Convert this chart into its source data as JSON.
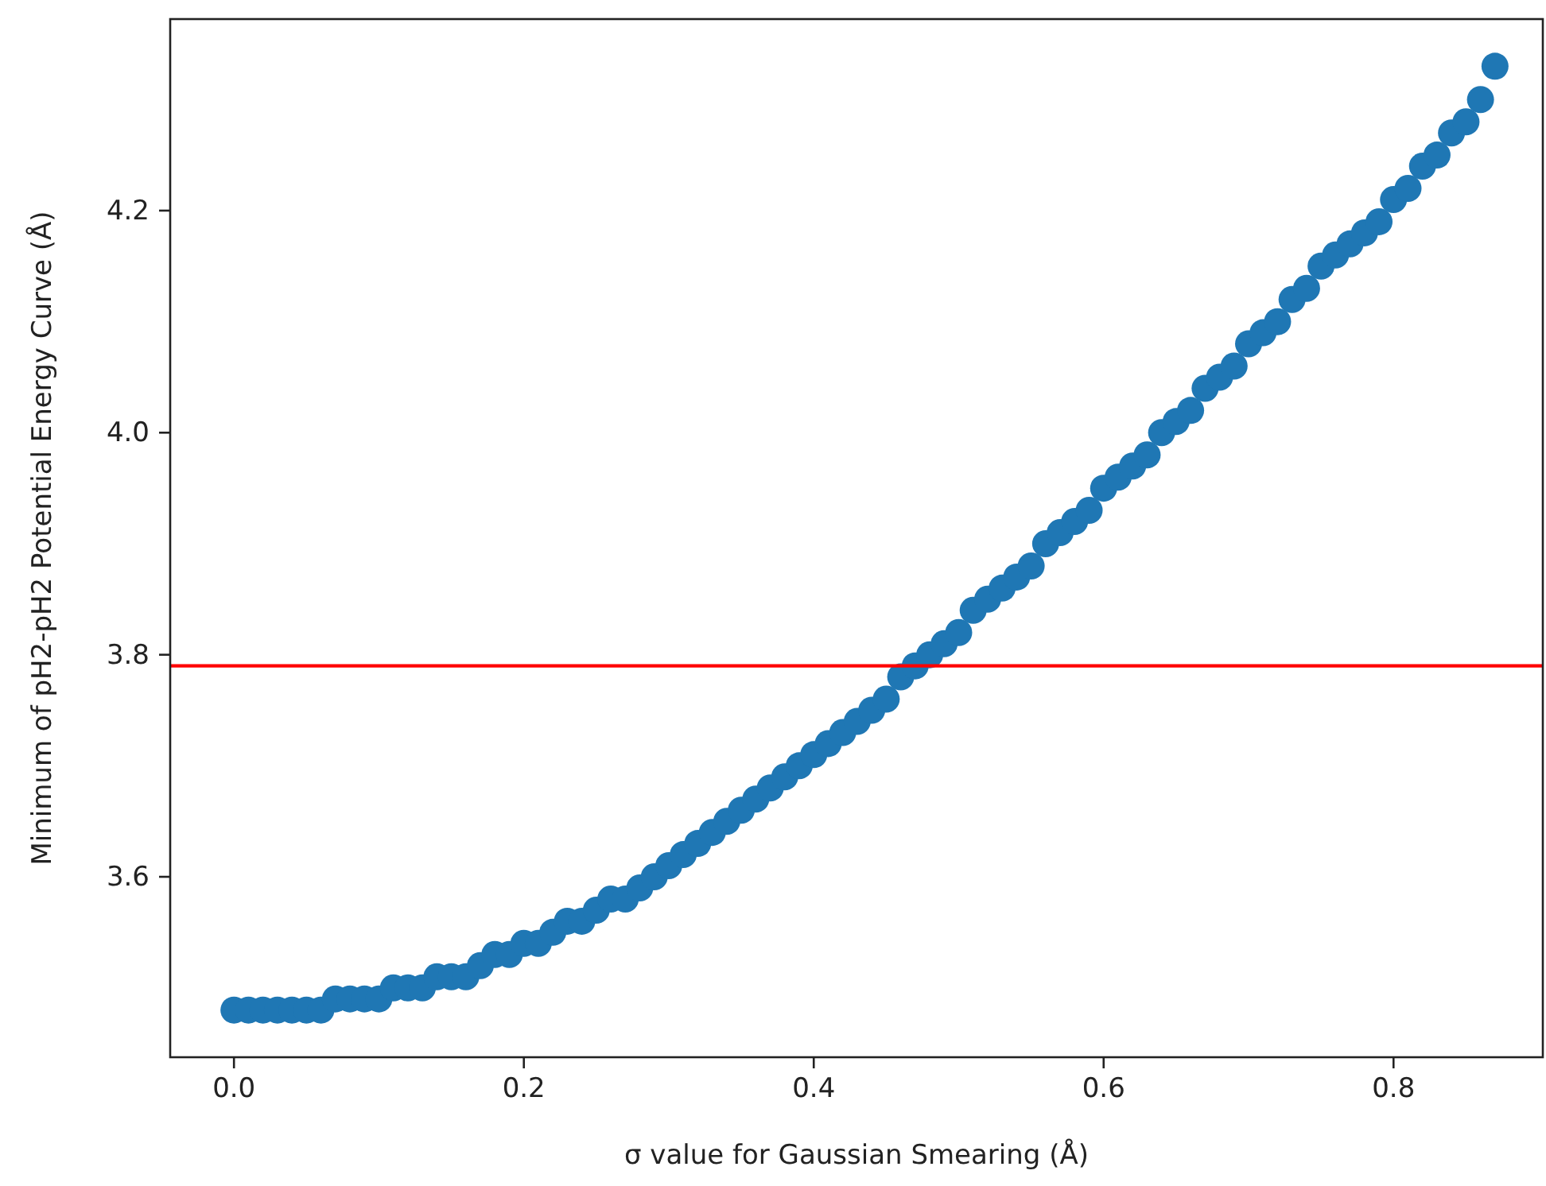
{
  "chart_data": {
    "type": "scatter",
    "xlabel": "σ value for Gaussian Smearing (Å)",
    "ylabel": "Minimum of pH2-pH2 Potential Energy Curve (Å)",
    "xlim": [
      -0.044,
      0.903
    ],
    "ylim": [
      3.4375,
      4.3725
    ],
    "xticks": [
      {
        "value": 0,
        "label": "0.0"
      },
      0.2,
      0.4,
      0.6,
      0.8
    ],
    "yticks": [
      3.6,
      3.8,
      {
        "value": 4,
        "label": "4.0"
      },
      4.2
    ],
    "marker": "circle",
    "grid": false,
    "ref_lines": [
      {
        "axis": "y",
        "value": 3.79,
        "color": "#ff0000"
      }
    ],
    "series": [
      {
        "color": "#1f77b4",
        "x": [
          0,
          0.01,
          0.02,
          0.03,
          0.04,
          0.05,
          0.06,
          0.07,
          0.08,
          0.09,
          0.1,
          0.11,
          0.12,
          0.13,
          0.14,
          0.15,
          0.16,
          0.17,
          0.18,
          0.19,
          0.2,
          0.21,
          0.22,
          0.23,
          0.24,
          0.25,
          0.26,
          0.27,
          0.28,
          0.29,
          0.3,
          0.31,
          0.32,
          0.33,
          0.34,
          0.35,
          0.36,
          0.37,
          0.38,
          0.39,
          0.4,
          0.41,
          0.42,
          0.43,
          0.44,
          0.45,
          0.46,
          0.47,
          0.48,
          0.49,
          0.5,
          0.51,
          0.52,
          0.53,
          0.54,
          0.55,
          0.56,
          0.57,
          0.58,
          0.59,
          0.6,
          0.61,
          0.62,
          0.63,
          0.64,
          0.65,
          0.66,
          0.67,
          0.68,
          0.69,
          0.7,
          0.71,
          0.72,
          0.73,
          0.74,
          0.75,
          0.76,
          0.77,
          0.78,
          0.79,
          0.8,
          0.81,
          0.82,
          0.83,
          0.84,
          0.85,
          0.86,
          0.87
        ],
        "values": [
          3.48,
          3.48,
          3.48,
          3.48,
          3.48,
          3.48,
          3.48,
          3.49,
          3.49,
          3.49,
          3.49,
          3.5,
          3.5,
          3.5,
          3.51,
          3.51,
          3.51,
          3.52,
          3.53,
          3.53,
          3.54,
          3.54,
          3.55,
          3.56,
          3.56,
          3.57,
          3.58,
          3.58,
          3.59,
          3.6,
          3.61,
          3.62,
          3.63,
          3.64,
          3.65,
          3.66,
          3.67,
          3.68,
          3.69,
          3.7,
          3.71,
          3.72,
          3.73,
          3.74,
          3.75,
          3.76,
          3.78,
          3.79,
          3.8,
          3.81,
          3.82,
          3.84,
          3.85,
          3.86,
          3.87,
          3.88,
          3.9,
          3.91,
          3.92,
          3.93,
          3.95,
          3.96,
          3.97,
          3.98,
          4,
          4.01,
          4.02,
          4.04,
          4.05,
          4.06,
          4.08,
          4.09,
          4.1,
          4.12,
          4.13,
          4.15,
          4.16,
          4.17,
          4.18,
          4.19,
          4.21,
          4.22,
          4.24,
          4.25,
          4.27,
          4.28,
          4.3,
          4.33
        ]
      }
    ]
  }
}
